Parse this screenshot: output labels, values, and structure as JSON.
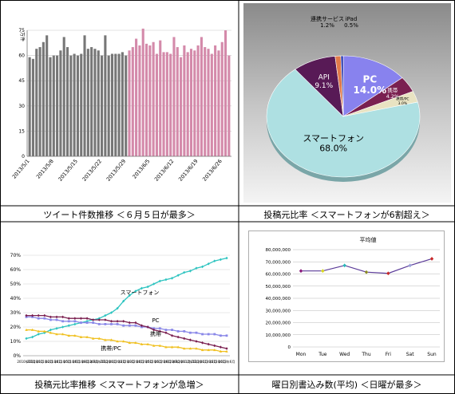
{
  "captions": {
    "tl": "ツイート件数推移 ＜６月５日が最多＞",
    "tr": "投稿元比率 ＜スマートフォンが6割超え＞",
    "bl": "投稿元比率推移 ＜スマートフォンが急増＞",
    "br": "曜日別書込み数(平均) ＜日曜が最多＞"
  },
  "chart_data": [
    {
      "type": "bar",
      "ylabel": "万件",
      "ylim": [
        0,
        75
      ],
      "yticks": [
        "0",
        "15",
        "30",
        "45",
        "60",
        "75"
      ],
      "xticks": [
        "2013/5/1",
        "2013/5/8",
        "2013/5/15",
        "2013/5/22",
        "2013/5/29",
        "2013/6/5",
        "2013/6/12",
        "2013/6/19",
        "2013/6/26"
      ],
      "colors": {
        "may": "#777777",
        "june": "#d48aaa"
      },
      "series": [
        {
          "values": [
            59,
            58,
            64,
            65,
            68,
            72,
            59,
            60,
            60,
            63,
            71,
            65,
            60,
            61,
            60,
            61,
            72,
            64,
            65,
            64,
            63,
            60,
            72,
            60,
            61,
            61,
            61,
            62,
            60
          ]
        },
        {
          "values": [
            63,
            65,
            70,
            66,
            76,
            67,
            66,
            68,
            61,
            69,
            62,
            62,
            61,
            71,
            65,
            59,
            66,
            62,
            64,
            63,
            66,
            71,
            65,
            64,
            61,
            66,
            63,
            68,
            75,
            60
          ]
        }
      ]
    },
    {
      "type": "pie",
      "slices": [
        {
          "label": "PC",
          "value": 14.0,
          "text": "14.0%",
          "color": "#8882ee"
        },
        {
          "label": "携帯",
          "value": 4.2,
          "text": "4.2%",
          "color": "#7a2050"
        },
        {
          "label": "携帯/PC",
          "value": 3.0,
          "text": "3.0%",
          "color": "#e9e3c2"
        },
        {
          "label": "スマートフォン",
          "value": 68.0,
          "text": "68.0%",
          "color": "#aee0e2"
        },
        {
          "label": "API",
          "value": 9.1,
          "text": "9.1%",
          "color": "#581a56"
        },
        {
          "label": "連携サービス",
          "value": 1.2,
          "text": "1.2%",
          "color": "#e07a4a"
        },
        {
          "label": "iPad",
          "value": 0.5,
          "text": "0.5%",
          "color": "#2233aa"
        }
      ]
    },
    {
      "type": "line",
      "ylim": [
        0,
        70
      ],
      "yticks": [
        "0%",
        "10%",
        "20%",
        "30%",
        "40%",
        "50%",
        "60%",
        "70%"
      ],
      "xticks": [
        "2010年11月",
        "2011年1月",
        "2011年2月",
        "2011年4月",
        "2011年5月",
        "2011年6月",
        "2011年8月",
        "2011年9月",
        "2011年11月",
        "2012年1月",
        "2012年2月",
        "2012年3月",
        "2012年4月",
        "2012年5月",
        "2012年6月",
        "2012年8月",
        "2012年9月",
        "2012年11月",
        "2012年12月",
        "2013年1月",
        "2013年2月",
        "2013年4月",
        "2013年6月"
      ],
      "series": [
        {
          "name": "スマートフォン",
          "color": "#2ec4c0",
          "marker": "diamond",
          "values": [
            12,
            13,
            15,
            16,
            18,
            19,
            20,
            21,
            22,
            23,
            24,
            25,
            26,
            28,
            30,
            33,
            38,
            42,
            45,
            47,
            48,
            50,
            52,
            53,
            54,
            56,
            58,
            59,
            61,
            62,
            64,
            66,
            67,
            68
          ]
        },
        {
          "name": "PC",
          "color": "#8a88e8",
          "marker": "square",
          "values": [
            27,
            27,
            26,
            26,
            25,
            25,
            24,
            24,
            24,
            23,
            23,
            23,
            22,
            22,
            22,
            22,
            21,
            21,
            21,
            20,
            20,
            19,
            19,
            18,
            18,
            17,
            17,
            16,
            16,
            15,
            15,
            15,
            14,
            14
          ]
        },
        {
          "name": "携帯",
          "color": "#7a1f4f",
          "marker": "diamond",
          "values": [
            28,
            28,
            28,
            28,
            27,
            27,
            27,
            26,
            26,
            26,
            26,
            25,
            25,
            25,
            24,
            24,
            24,
            23,
            23,
            21,
            20,
            18,
            17,
            16,
            14,
            13,
            12,
            11,
            10,
            9,
            8,
            7,
            6,
            5
          ]
        },
        {
          "name": "携帯/PC",
          "color": "#f0c020",
          "marker": "triangle",
          "values": [
            18,
            18,
            17,
            17,
            16,
            15,
            15,
            14,
            14,
            13,
            13,
            12,
            12,
            11,
            11,
            10,
            10,
            9,
            9,
            8,
            8,
            7,
            7,
            6,
            6,
            6,
            5,
            5,
            5,
            4,
            4,
            4,
            3,
            3
          ]
        }
      ]
    },
    {
      "type": "line",
      "title": "平均値",
      "ylim": [
        0,
        80000000
      ],
      "yticks": [
        "0",
        "10,000,000",
        "20,000,000",
        "30,000,000",
        "40,000,000",
        "50,000,000",
        "60,000,000",
        "70,000,000",
        "80,000,000"
      ],
      "categories": [
        "Mon",
        "Tue",
        "Wed",
        "Thu",
        "Fri",
        "Sat",
        "Sun"
      ],
      "values": [
        62500000,
        62500000,
        67000000,
        61500000,
        60500000,
        67000000,
        72500000
      ],
      "line_color": "#5a3a98",
      "marker_colors": [
        "#8a1a7a",
        "#d8d820",
        "#2ab8b8",
        "#8a8a20",
        "#c82828",
        "#9aa0d8",
        "#c82828"
      ]
    }
  ]
}
